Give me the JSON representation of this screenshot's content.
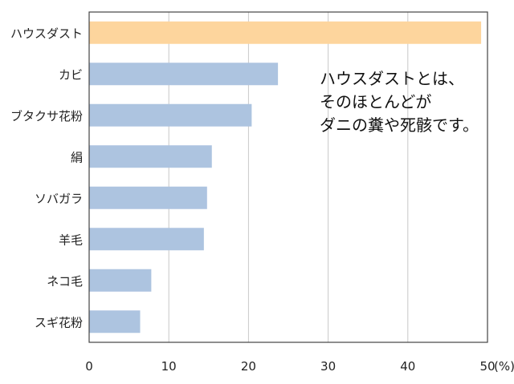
{
  "chart_data": {
    "type": "bar",
    "orientation": "horizontal",
    "categories": [
      "ハウスダスト",
      "カビ",
      "ブタクサ花粉",
      "絹",
      "ソバガラ",
      "羊毛",
      "ネコ毛",
      "スギ花粉"
    ],
    "values": [
      49.2,
      23.7,
      20.4,
      15.4,
      14.8,
      14.4,
      7.8,
      6.4
    ],
    "highlight_index": 0,
    "colors": {
      "default": "#adc4e0",
      "highlight": "#fdd59d",
      "grid": "#c8c8c8",
      "frame": "#444444"
    },
    "xlim": [
      0,
      50
    ],
    "xticks": [
      "0",
      "10",
      "20",
      "30",
      "40",
      "50"
    ],
    "xunit": "(%)",
    "grid": "vertical",
    "annotation": [
      "ハウスダストとは、",
      "そのほとんどが",
      "ダニの糞や死骸です。"
    ]
  }
}
